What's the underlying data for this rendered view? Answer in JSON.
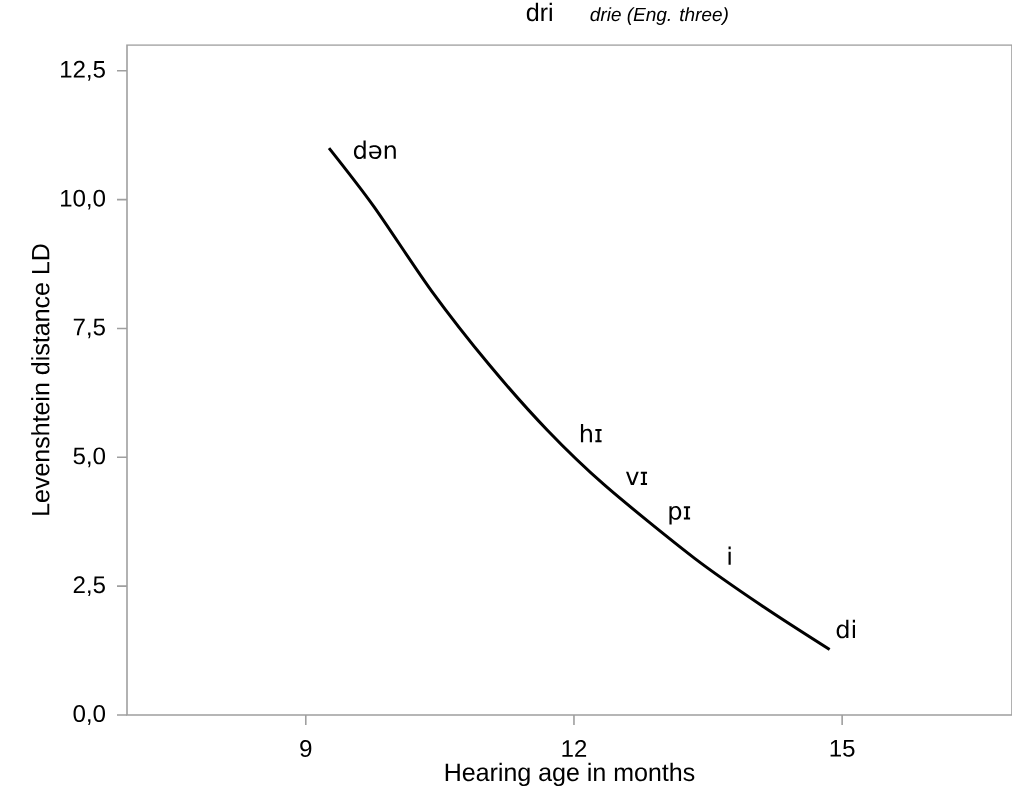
{
  "chart_data": {
    "type": "line",
    "title": "dri",
    "subtitle": "drie (Eng. three)",
    "xlabel": "Hearing age in months",
    "ylabel": "Levenshtein distance LD",
    "x": [
      9.26,
      9.76,
      10.41,
      11.05,
      11.7,
      12.35,
      13.35,
      14.12,
      14.86
    ],
    "series": [
      {
        "color": "#000000",
        "values": [
          11.0,
          9.87,
          8.22,
          6.8,
          5.53,
          4.45,
          3.04,
          2.1,
          1.27
        ]
      }
    ],
    "xlim": [
      7,
      16.9
    ],
    "ylim": [
      0,
      13
    ],
    "xticks": [
      9,
      12,
      15
    ],
    "yticks": [
      {
        "value": 0,
        "label": "0,0"
      },
      {
        "value": 2.5,
        "label": "2,5"
      },
      {
        "value": 5,
        "label": "5,0"
      },
      {
        "value": 7.5,
        "label": "7,5"
      },
      {
        "value": 10,
        "label": "10,0"
      },
      {
        "value": 12.5,
        "label": "12,5"
      }
    ],
    "annotations": [
      {
        "text": "dən",
        "x": 9.43,
        "y": 10.6
      },
      {
        "text": "hɪ",
        "x": 11.96,
        "y": 5.1
      },
      {
        "text": "vɪ",
        "x": 12.48,
        "y": 4.27
      },
      {
        "text": "pɪ",
        "x": 12.95,
        "y": 3.6
      },
      {
        "text": "i",
        "x": 13.61,
        "y": 2.72
      },
      {
        "text": "di",
        "x": 14.83,
        "y": 1.3
      }
    ],
    "marker": "none"
  }
}
